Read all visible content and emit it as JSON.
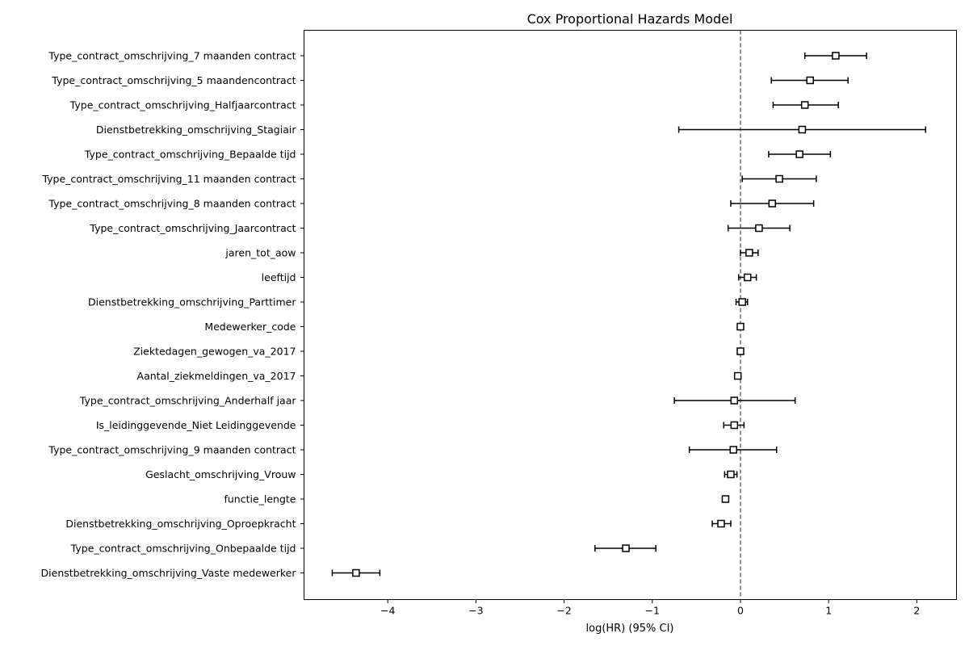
{
  "chart_data": {
    "type": "forest",
    "title": "Cox Proportional Hazards Model",
    "xlabel": "log(HR) (95% CI)",
    "ylabel": "",
    "xlim": [
      -4.95,
      2.45
    ],
    "xticks": [
      -4,
      -3,
      -2,
      -1,
      0,
      1,
      2
    ],
    "xtick_labels": [
      "−4",
      "−3",
      "−2",
      "−1",
      "0",
      "1",
      "2"
    ],
    "reference_line": 0,
    "grid": false,
    "covariates": [
      {
        "label": "Type_contract_omschrijving_7 maanden contract",
        "coef": 1.08,
        "lower": 0.73,
        "upper": 1.43
      },
      {
        "label": "Type_contract_omschrijving_5 maandencontract",
        "coef": 0.79,
        "lower": 0.35,
        "upper": 1.22
      },
      {
        "label": "Type_contract_omschrijving_Halfjaarcontract",
        "coef": 0.73,
        "lower": 0.37,
        "upper": 1.11
      },
      {
        "label": "Dienstbetrekking_omschrijving_Stagiair",
        "coef": 0.7,
        "lower": -0.7,
        "upper": 2.1
      },
      {
        "label": "Type_contract_omschrijving_Bepaalde tijd",
        "coef": 0.67,
        "lower": 0.32,
        "upper": 1.02
      },
      {
        "label": "Type_contract_omschrijving_11 maanden contract",
        "coef": 0.44,
        "lower": 0.02,
        "upper": 0.86
      },
      {
        "label": "Type_contract_omschrijving_8 maanden contract",
        "coef": 0.36,
        "lower": -0.11,
        "upper": 0.83
      },
      {
        "label": "Type_contract_omschrijving_Jaarcontract",
        "coef": 0.21,
        "lower": -0.14,
        "upper": 0.56
      },
      {
        "label": "jaren_tot_aow",
        "coef": 0.1,
        "lower": 0.0,
        "upper": 0.2
      },
      {
        "label": "leeftijd",
        "coef": 0.08,
        "lower": -0.02,
        "upper": 0.18
      },
      {
        "label": "Dienstbetrekking_omschrijving_Parttimer",
        "coef": 0.02,
        "lower": -0.05,
        "upper": 0.08
      },
      {
        "label": "Medewerker_code",
        "coef": 0.0,
        "lower": -0.01,
        "upper": 0.01
      },
      {
        "label": "Ziektedagen_gewogen_va_2017",
        "coef": 0.0,
        "lower": -0.01,
        "upper": 0.01
      },
      {
        "label": "Aantal_ziekmeldingen_va_2017",
        "coef": -0.03,
        "lower": -0.04,
        "upper": -0.02
      },
      {
        "label": "Type_contract_omschrijving_Anderhalf jaar",
        "coef": -0.07,
        "lower": -0.75,
        "upper": 0.62
      },
      {
        "label": "Is_leidinggevende_Niet Leidinggevende",
        "coef": -0.07,
        "lower": -0.19,
        "upper": 0.04
      },
      {
        "label": "Type_contract_omschrijving_9 maanden contract",
        "coef": -0.08,
        "lower": -0.58,
        "upper": 0.41
      },
      {
        "label": "Geslacht_omschrijving_Vrouw",
        "coef": -0.11,
        "lower": -0.18,
        "upper": -0.04
      },
      {
        "label": "functie_lengte",
        "coef": -0.17,
        "lower": -0.18,
        "upper": -0.16
      },
      {
        "label": "Dienstbetrekking_omschrijving_Oproepkracht",
        "coef": -0.22,
        "lower": -0.32,
        "upper": -0.11
      },
      {
        "label": "Type_contract_omschrijving_Onbepaalde tijd",
        "coef": -1.3,
        "lower": -1.65,
        "upper": -0.96
      },
      {
        "label": "Dienstbetrekking_omschrijving_Vaste medewerker",
        "coef": -4.36,
        "lower": -4.63,
        "upper": -4.09
      }
    ]
  }
}
